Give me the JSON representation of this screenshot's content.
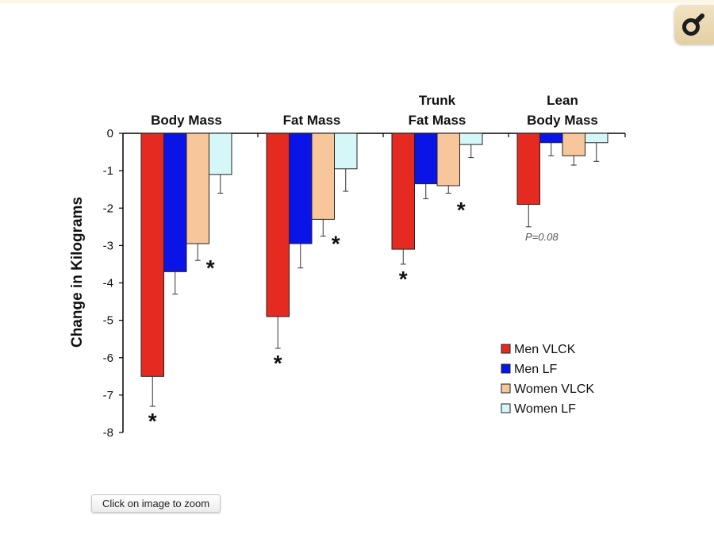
{
  "zoom_button": {
    "label": "Click on image to zoom"
  },
  "zoom_tool": {
    "icon": "magnifier-icon"
  },
  "colors": {
    "men_vlck": "#e52a22",
    "men_lf": "#0a14e6",
    "women_vlck": "#f7c79b",
    "women_lf": "#d6f7f7"
  },
  "chart_data": {
    "type": "bar",
    "ylabel": "Change in Kilograms",
    "ylim": [
      -8,
      0
    ],
    "yticks": [
      "0",
      "-1",
      "-2",
      "-3",
      "-4",
      "-5",
      "-6",
      "-7",
      "-8"
    ],
    "categories": [
      {
        "label_lines": [
          "Body Mass"
        ]
      },
      {
        "label_lines": [
          "Fat Mass"
        ]
      },
      {
        "label_lines": [
          "Trunk",
          "Fat Mass"
        ]
      },
      {
        "label_lines": [
          "Lean",
          "Body Mass"
        ]
      }
    ],
    "series": [
      {
        "name": "Men VLCK",
        "color": "#e52a22",
        "values": [
          -6.5,
          -4.9,
          -3.1,
          -1.9
        ],
        "errors": [
          0.8,
          0.85,
          0.4,
          0.6
        ]
      },
      {
        "name": "Men LF",
        "color": "#0a14e6",
        "values": [
          -3.7,
          -2.95,
          -1.35,
          -0.25
        ],
        "errors": [
          0.6,
          0.65,
          0.4,
          0.35
        ]
      },
      {
        "name": "Women VLCK",
        "color": "#f7c79b",
        "values": [
          -2.95,
          -2.3,
          -1.4,
          -0.6
        ],
        "errors": [
          0.45,
          0.45,
          0.2,
          0.25
        ]
      },
      {
        "name": "Women LF",
        "color": "#d6f7f7",
        "values": [
          -1.1,
          -0.95,
          -0.3,
          -0.25
        ],
        "errors": [
          0.5,
          0.6,
          0.35,
          0.5
        ]
      }
    ],
    "significance": [
      {
        "category": 0,
        "series": 0,
        "text": "*"
      },
      {
        "category": 0,
        "series": 2,
        "text": "*"
      },
      {
        "category": 1,
        "series": 0,
        "text": "*"
      },
      {
        "category": 1,
        "series": 2,
        "text": "*"
      },
      {
        "category": 2,
        "series": 0,
        "text": "*"
      },
      {
        "category": 2,
        "series": 2,
        "text": "*"
      }
    ],
    "annotations": [
      {
        "category": 3,
        "series": 0,
        "text": "P=0.08"
      }
    ],
    "legend_position": "bottom-right",
    "grid": false
  }
}
